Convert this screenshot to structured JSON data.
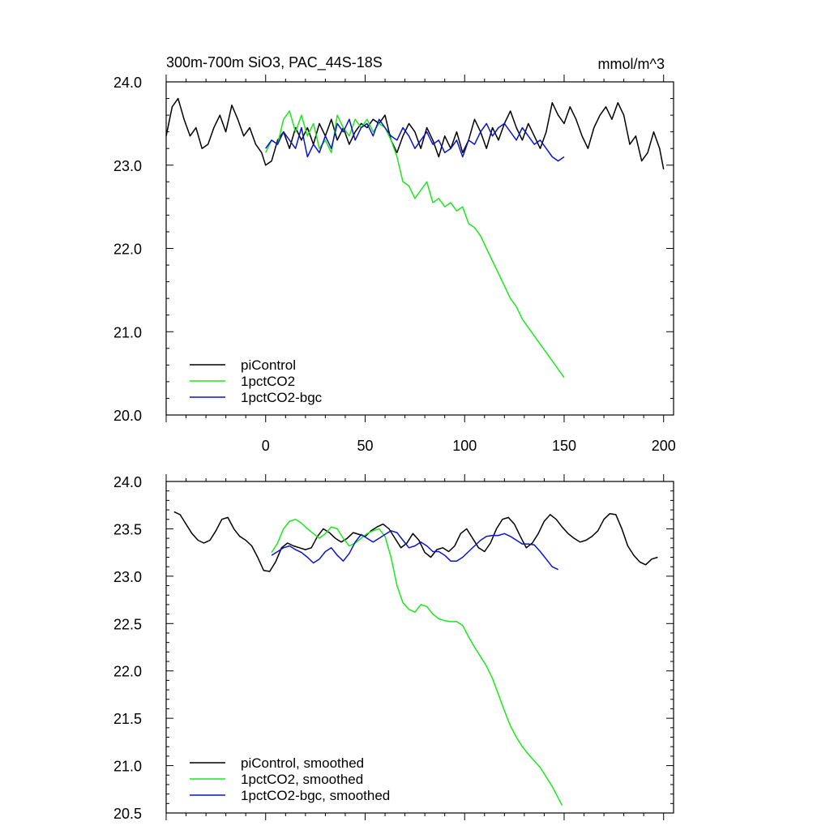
{
  "header": {
    "title": "300m-700m SiO3, PAC_44S-18S",
    "units": "mmol/m^3"
  },
  "colors": {
    "piControl": "#000000",
    "1pctCO2": "#1ee61e",
    "1pctCO2-bgc": "#0a14c8"
  },
  "chart_data": [
    {
      "type": "line",
      "title": "300m-700m SiO3, PAC_44S-18S",
      "units": "mmol/m^3",
      "xlabel": "",
      "ylabel": "",
      "xlim": [
        -50,
        205
      ],
      "ylim": [
        20.0,
        24.0
      ],
      "x_ticks": [
        0,
        50,
        100,
        150,
        200
      ],
      "x_tick_labels": [
        "0",
        "50",
        "100",
        "150",
        "200"
      ],
      "y_ticks": [
        20.0,
        21.0,
        22.0,
        23.0,
        24.0
      ],
      "y_tick_labels": [
        "20.0",
        "21.0",
        "22.0",
        "23.0",
        "24.0"
      ],
      "legend_position": "bottom-left",
      "grid": false,
      "series": [
        {
          "name": "piControl",
          "x": [
            -50,
            -47,
            -44,
            -41,
            -38,
            -35,
            -32,
            -29,
            -26,
            -23,
            -20,
            -17,
            -14,
            -11,
            -8,
            -5,
            -2,
            0,
            3,
            6,
            9,
            12,
            15,
            18,
            21,
            24,
            27,
            30,
            33,
            36,
            39,
            42,
            45,
            48,
            51,
            54,
            57,
            60,
            63,
            66,
            69,
            72,
            75,
            78,
            81,
            84,
            87,
            90,
            93,
            96,
            99,
            102,
            105,
            108,
            111,
            114,
            117,
            120,
            123,
            126,
            129,
            132,
            135,
            138,
            141,
            144,
            147,
            150,
            153,
            156,
            159,
            162,
            165,
            168,
            171,
            174,
            177,
            180,
            183,
            186,
            189,
            192,
            195,
            198,
            200
          ],
          "values": [
            23.35,
            23.7,
            23.8,
            23.55,
            23.35,
            23.45,
            23.2,
            23.25,
            23.45,
            23.6,
            23.4,
            23.72,
            23.55,
            23.35,
            23.45,
            23.25,
            23.15,
            23.0,
            23.05,
            23.3,
            23.4,
            23.2,
            23.45,
            23.3,
            23.45,
            23.25,
            23.5,
            23.35,
            23.55,
            23.3,
            23.45,
            23.25,
            23.4,
            23.5,
            23.45,
            23.55,
            23.5,
            23.6,
            23.3,
            23.15,
            23.35,
            23.5,
            23.4,
            23.2,
            23.45,
            23.3,
            23.1,
            23.35,
            23.2,
            23.4,
            23.15,
            23.3,
            23.55,
            23.4,
            23.2,
            23.45,
            23.3,
            23.5,
            23.65,
            23.45,
            23.3,
            23.5,
            23.35,
            23.2,
            23.4,
            23.75,
            23.6,
            23.5,
            23.7,
            23.55,
            23.35,
            23.2,
            23.45,
            23.6,
            23.7,
            23.55,
            23.75,
            23.6,
            23.25,
            23.35,
            23.05,
            23.15,
            23.4,
            23.2,
            22.95
          ]
        },
        {
          "name": "1pctCO2",
          "x": [
            0,
            3,
            6,
            9,
            12,
            15,
            18,
            21,
            24,
            27,
            30,
            33,
            36,
            39,
            42,
            45,
            48,
            51,
            54,
            57,
            60,
            63,
            66,
            69,
            72,
            75,
            78,
            81,
            84,
            87,
            90,
            93,
            96,
            99,
            102,
            105,
            108,
            111,
            114,
            117,
            120,
            123,
            126,
            129,
            132,
            135,
            138,
            141,
            144,
            147,
            150
          ],
          "values": [
            23.15,
            23.3,
            23.25,
            23.55,
            23.65,
            23.4,
            23.6,
            23.35,
            23.5,
            23.2,
            23.3,
            23.15,
            23.6,
            23.45,
            23.35,
            23.55,
            23.45,
            23.55,
            23.4,
            23.5,
            23.45,
            23.3,
            23.1,
            22.8,
            22.75,
            22.6,
            22.7,
            22.8,
            22.55,
            22.6,
            22.5,
            22.55,
            22.45,
            22.5,
            22.3,
            22.25,
            22.15,
            22.0,
            21.85,
            21.7,
            21.55,
            21.4,
            21.3,
            21.15,
            21.05,
            20.95,
            20.85,
            20.75,
            20.65,
            20.55,
            20.45
          ]
        },
        {
          "name": "1pctCO2-bgc",
          "x": [
            0,
            3,
            6,
            9,
            12,
            15,
            18,
            21,
            24,
            27,
            30,
            33,
            36,
            39,
            42,
            45,
            48,
            51,
            54,
            57,
            60,
            63,
            66,
            69,
            72,
            75,
            78,
            81,
            84,
            87,
            90,
            93,
            96,
            99,
            102,
            105,
            108,
            111,
            114,
            117,
            120,
            123,
            126,
            129,
            132,
            135,
            138,
            141,
            144,
            147,
            150
          ],
          "values": [
            23.2,
            23.3,
            23.25,
            23.4,
            23.3,
            23.2,
            23.45,
            23.1,
            23.25,
            23.15,
            23.35,
            23.2,
            23.5,
            23.4,
            23.55,
            23.3,
            23.45,
            23.5,
            23.35,
            23.55,
            23.45,
            23.35,
            23.3,
            23.45,
            23.35,
            23.2,
            23.3,
            23.4,
            23.25,
            23.3,
            23.15,
            23.2,
            23.3,
            23.1,
            23.3,
            23.25,
            23.4,
            23.5,
            23.35,
            23.45,
            23.5,
            23.4,
            23.3,
            23.45,
            23.35,
            23.25,
            23.3,
            23.2,
            23.1,
            23.05,
            23.1
          ]
        }
      ]
    },
    {
      "type": "line",
      "title": "",
      "xlabel": "",
      "ylabel": "",
      "xlim": [
        -50,
        205
      ],
      "ylim": [
        20.5,
        24.0
      ],
      "y_ticks": [
        20.5,
        21.0,
        21.5,
        22.0,
        22.5,
        23.0,
        23.5,
        24.0
      ],
      "y_tick_labels": [
        "20.5",
        "21.0",
        "21.5",
        "22.0",
        "22.5",
        "23.0",
        "23.5",
        "24.0"
      ],
      "x_ticks": [
        0,
        50,
        100,
        150,
        200
      ],
      "legend_position": "bottom-left",
      "grid": false,
      "series": [
        {
          "name": "piControl, smoothed",
          "x": [
            -46,
            -43,
            -40,
            -37,
            -34,
            -31,
            -28,
            -25,
            -22,
            -19,
            -16,
            -13,
            -10,
            -7,
            -4,
            -1,
            2,
            5,
            8,
            11,
            14,
            17,
            20,
            23,
            26,
            29,
            32,
            35,
            38,
            41,
            44,
            47,
            50,
            53,
            56,
            59,
            62,
            65,
            68,
            71,
            74,
            77,
            80,
            83,
            86,
            89,
            92,
            95,
            98,
            101,
            104,
            107,
            110,
            113,
            116,
            119,
            122,
            125,
            128,
            131,
            134,
            137,
            140,
            143,
            146,
            149,
            152,
            155,
            158,
            161,
            164,
            167,
            170,
            173,
            176,
            179,
            182,
            185,
            188,
            191,
            194,
            197
          ],
          "values": [
            23.68,
            23.65,
            23.55,
            23.45,
            23.38,
            23.35,
            23.38,
            23.48,
            23.6,
            23.62,
            23.5,
            23.42,
            23.38,
            23.32,
            23.2,
            23.06,
            23.05,
            23.15,
            23.3,
            23.35,
            23.32,
            23.3,
            23.28,
            23.3,
            23.42,
            23.5,
            23.46,
            23.4,
            23.36,
            23.4,
            23.46,
            23.44,
            23.42,
            23.48,
            23.52,
            23.55,
            23.5,
            23.4,
            23.3,
            23.35,
            23.45,
            23.38,
            23.25,
            23.2,
            23.28,
            23.3,
            23.26,
            23.32,
            23.45,
            23.5,
            23.4,
            23.3,
            23.26,
            23.35,
            23.5,
            23.6,
            23.62,
            23.55,
            23.42,
            23.3,
            23.35,
            23.45,
            23.58,
            23.65,
            23.6,
            23.52,
            23.45,
            23.4,
            23.36,
            23.38,
            23.42,
            23.48,
            23.6,
            23.66,
            23.65,
            23.5,
            23.32,
            23.22,
            23.15,
            23.12,
            23.18,
            23.2
          ]
        },
        {
          "name": "1pctCO2, smoothed",
          "x": [
            3,
            6,
            9,
            12,
            15,
            18,
            21,
            24,
            27,
            30,
            33,
            36,
            39,
            42,
            45,
            48,
            51,
            54,
            57,
            60,
            63,
            66,
            69,
            72,
            75,
            78,
            81,
            84,
            87,
            90,
            93,
            96,
            99,
            102,
            105,
            108,
            111,
            114,
            117,
            120,
            123,
            126,
            129,
            132,
            135,
            138,
            141,
            144,
            147,
            149
          ],
          "values": [
            23.25,
            23.35,
            23.5,
            23.58,
            23.6,
            23.56,
            23.5,
            23.45,
            23.4,
            23.45,
            23.52,
            23.5,
            23.4,
            23.32,
            23.35,
            23.4,
            23.45,
            23.48,
            23.5,
            23.42,
            23.2,
            22.9,
            22.72,
            22.65,
            22.62,
            22.7,
            22.68,
            22.6,
            22.55,
            22.53,
            22.52,
            22.52,
            22.48,
            22.36,
            22.25,
            22.15,
            22.05,
            21.92,
            21.75,
            21.58,
            21.42,
            21.3,
            21.2,
            21.12,
            21.05,
            20.98,
            20.88,
            20.78,
            20.66,
            20.58
          ]
        },
        {
          "name": "1pctCO2-bgc, smoothed",
          "x": [
            3,
            6,
            9,
            12,
            15,
            18,
            21,
            24,
            27,
            30,
            33,
            36,
            39,
            42,
            45,
            48,
            51,
            54,
            57,
            60,
            63,
            66,
            69,
            72,
            75,
            78,
            81,
            84,
            87,
            90,
            93,
            96,
            99,
            102,
            105,
            108,
            111,
            114,
            117,
            120,
            123,
            126,
            129,
            132,
            135,
            138,
            141,
            144,
            147
          ],
          "values": [
            23.22,
            23.26,
            23.3,
            23.32,
            23.28,
            23.25,
            23.2,
            23.14,
            23.18,
            23.26,
            23.3,
            23.22,
            23.16,
            23.24,
            23.36,
            23.44,
            23.4,
            23.36,
            23.4,
            23.44,
            23.48,
            23.46,
            23.38,
            23.3,
            23.32,
            23.36,
            23.32,
            23.26,
            23.26,
            23.22,
            23.16,
            23.16,
            23.2,
            23.26,
            23.32,
            23.38,
            23.42,
            23.43,
            23.43,
            23.45,
            23.42,
            23.38,
            23.34,
            23.34,
            23.33,
            23.26,
            23.18,
            23.1,
            23.07
          ]
        }
      ]
    }
  ]
}
